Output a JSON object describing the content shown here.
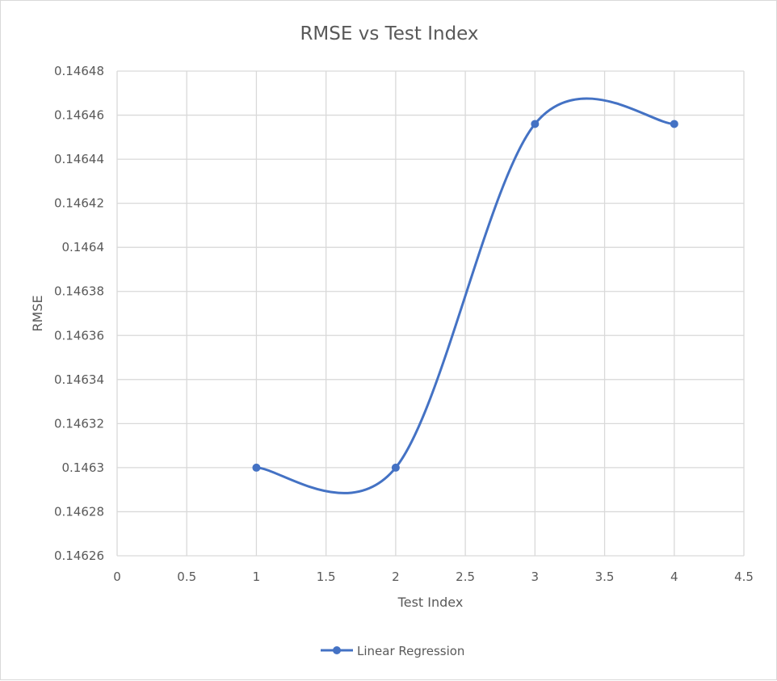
{
  "chart_data": {
    "type": "line",
    "smoothed": true,
    "title": "RMSE vs Test Index",
    "xlabel": "Test Index",
    "ylabel": "RMSE",
    "xlim": [
      0,
      4.5
    ],
    "ylim": [
      0.14626,
      0.14648
    ],
    "x_ticks": [
      "0",
      "0.5",
      "1",
      "1.5",
      "2",
      "2.5",
      "3",
      "3.5",
      "4",
      "4.5"
    ],
    "y_ticks": [
      "0.14626",
      "0.14628",
      "0.1463",
      "0.14632",
      "0.14634",
      "0.14636",
      "0.14638",
      "0.1464",
      "0.14642",
      "0.14644",
      "0.14646",
      "0.14648"
    ],
    "grid": true,
    "legend_position": "bottom",
    "series": [
      {
        "name": "Linear Regression",
        "color": "#4472C4",
        "marker": "circle",
        "x": [
          1,
          2,
          3,
          4
        ],
        "y": [
          0.1463,
          0.1463,
          0.146456,
          0.146456
        ]
      }
    ]
  }
}
